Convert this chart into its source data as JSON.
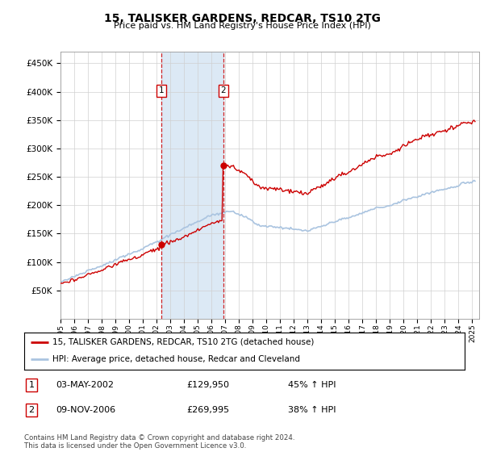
{
  "title": "15, TALISKER GARDENS, REDCAR, TS10 2TG",
  "subtitle": "Price paid vs. HM Land Registry's House Price Index (HPI)",
  "legend_line1": "15, TALISKER GARDENS, REDCAR, TS10 2TG (detached house)",
  "legend_line2": "HPI: Average price, detached house, Redcar and Cleveland",
  "transaction1_date": "03-MAY-2002",
  "transaction1_price": "£129,950",
  "transaction1_hpi": "45% ↑ HPI",
  "transaction2_date": "09-NOV-2006",
  "transaction2_price": "£269,995",
  "transaction2_hpi": "38% ↑ HPI",
  "footer": "Contains HM Land Registry data © Crown copyright and database right 2024.\nThis data is licensed under the Open Government Licence v3.0.",
  "hpi_color": "#aac4e0",
  "price_color": "#cc0000",
  "shade_color": "#dce9f5",
  "ylim": [
    0,
    470000
  ],
  "ytick_vals": [
    50000,
    100000,
    150000,
    200000,
    250000,
    300000,
    350000,
    400000,
    450000
  ],
  "ytick_labels": [
    "£50K",
    "£100K",
    "£150K",
    "£200K",
    "£250K",
    "£300K",
    "£350K",
    "£400K",
    "£450K"
  ],
  "transaction1_x": 2002.35,
  "transaction2_x": 2006.85,
  "price1": 129950,
  "price2": 269995
}
